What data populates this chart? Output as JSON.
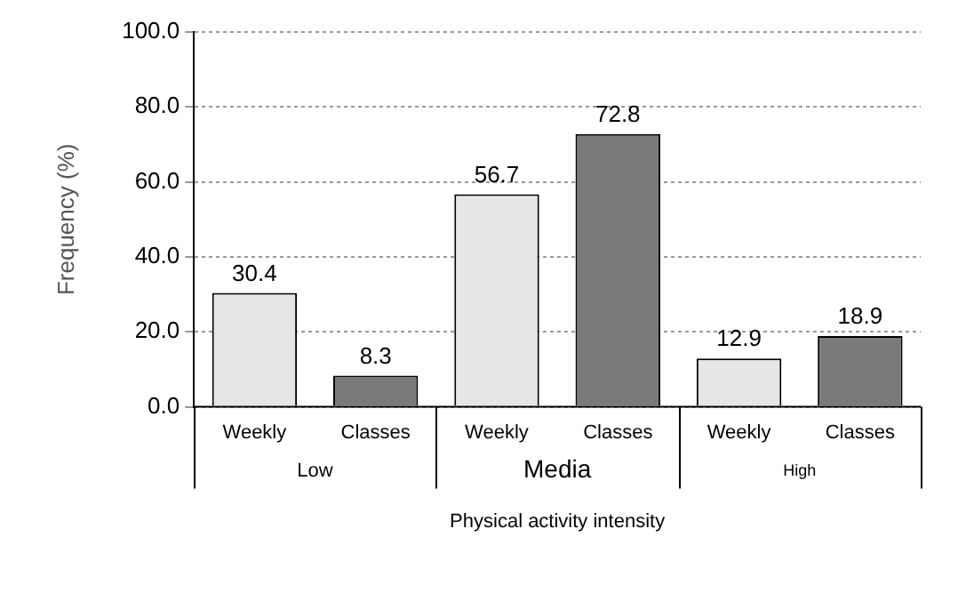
{
  "chart_data": {
    "type": "bar",
    "ylabel": "Frequency (%)",
    "xlabel": "Physical activity intensity",
    "categories": [
      "Weekly",
      "Classes",
      "Weekly",
      "Classes",
      "Weekly",
      "Classes"
    ],
    "values": [
      30.4,
      8.3,
      56.7,
      72.8,
      12.9,
      18.9
    ],
    "colors": [
      "#e6e6e6",
      "#7a7a7a",
      "#e6e6e6",
      "#7a7a7a",
      "#e6e6e6",
      "#7a7a7a"
    ],
    "ylim": [
      0,
      100
    ],
    "yticks": [
      {
        "value": 0,
        "label": "0.0"
      },
      {
        "value": 20,
        "label": "20.0"
      },
      {
        "value": 40,
        "label": "40.0"
      },
      {
        "value": 60,
        "label": "60.0"
      },
      {
        "value": 80,
        "label": "80.0"
      },
      {
        "value": 100,
        "label": "100.0"
      }
    ],
    "grid": "y",
    "data_labels": true,
    "legend": false,
    "annotations": [
      "Low",
      "Media",
      "High"
    ]
  }
}
